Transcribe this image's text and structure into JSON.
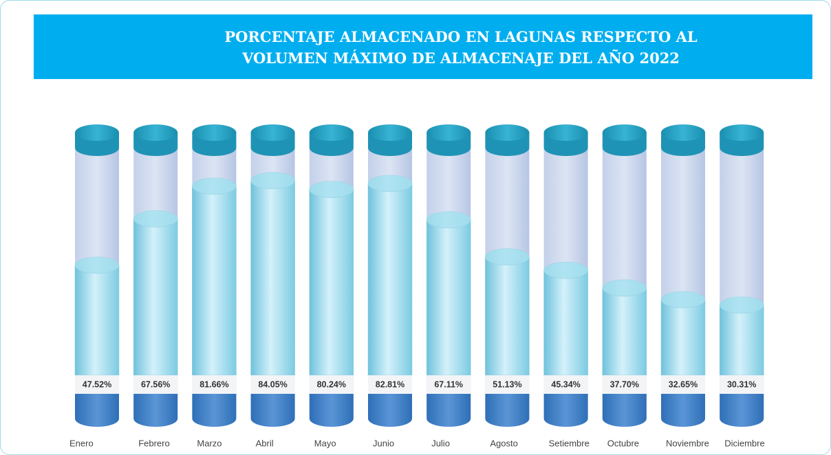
{
  "chart_data": {
    "type": "cylinder-bar",
    "title": "PORCENTAJE ALMACENADO EN LAGUNAS RESPECTO AL\nVOLUMEN MÁXIMO DE ALMACENAJE DEL AÑO 2022",
    "categories": [
      "Enero",
      "Febrero",
      "Marzo",
      "Abril",
      "Mayo",
      "Junio",
      "Julio",
      "Agosto",
      "Setiembre",
      "Octubre",
      "Noviembre",
      "Diciembre"
    ],
    "values": [
      47.52,
      67.56,
      81.66,
      84.05,
      80.24,
      82.81,
      67.11,
      51.13,
      45.34,
      37.7,
      32.65,
      30.31
    ],
    "value_labels": [
      "47.52%",
      "67.56%",
      "81.66%",
      "84.05%",
      "80.24%",
      "82.81%",
      "67.11%",
      "51.13%",
      "45.34%",
      "37.70%",
      "32.65%",
      "30.31%"
    ],
    "ylim": [
      0,
      100
    ],
    "color": "#8fd3e8"
  }
}
